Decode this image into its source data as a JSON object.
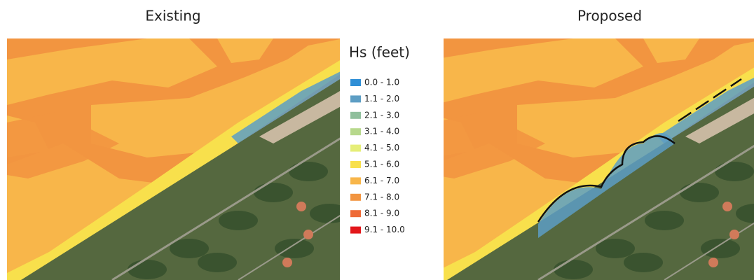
{
  "panels": [
    {
      "title": "Existing"
    },
    {
      "title": "Proposed"
    }
  ],
  "legend": {
    "title": "Hs (feet)",
    "items": [
      {
        "label": "0.0 - 1.0",
        "color": "#2f8fd6"
      },
      {
        "label": "1.1 - 2.0",
        "color": "#5d9ec4"
      },
      {
        "label": "2.1 - 3.0",
        "color": "#8fbf9c"
      },
      {
        "label": "3.1 - 4.0",
        "color": "#b7d88c"
      },
      {
        "label": "4.1 - 5.0",
        "color": "#e6ee78"
      },
      {
        "label": "5.1 - 6.0",
        "color": "#f8e04c"
      },
      {
        "label": "6.1 - 7.0",
        "color": "#f8b64a"
      },
      {
        "label": "7.1 - 8.0",
        "color": "#f29540"
      },
      {
        "label": "8.1 - 9.0",
        "color": "#ee6a36"
      },
      {
        "label": "9.1 - 10.0",
        "color": "#e3171b"
      }
    ]
  }
}
